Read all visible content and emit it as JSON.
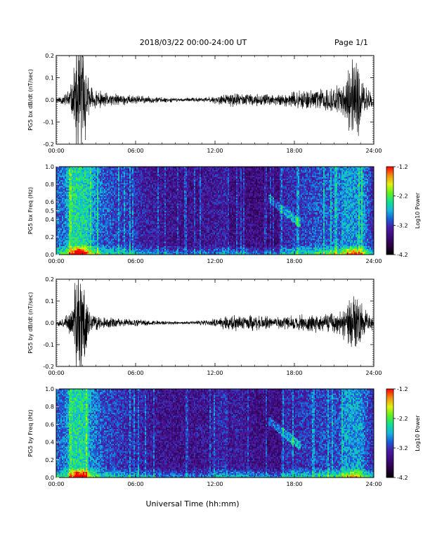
{
  "header": {
    "date_range": "2018/03/22  00:00-24:00 UT",
    "page": "Page 1/1"
  },
  "xlabel": "Universal Time (hh:mm)",
  "colors": {
    "trace": "#000000",
    "colormap": [
      "#000000",
      "#2a0040",
      "#3c0a78",
      "#4a1aa0",
      "#1a5ad8",
      "#18b4e0",
      "#10e090",
      "#60f020",
      "#e0f010",
      "#f09010",
      "#ff0000"
    ]
  },
  "chart_data": [
    {
      "type": "line",
      "ylabel": "PG5 bx dB/dt (nT/sec)",
      "xlim": [
        0,
        24
      ],
      "ylim": [
        -0.2,
        0.2
      ],
      "x_ticks": [
        "00:00",
        "06:00",
        "12:00",
        "18:00",
        "24:00"
      ],
      "y_ticks": [
        "0.2",
        "0.1",
        "0.0",
        "-0.1",
        "-0.2"
      ],
      "activity": [
        {
          "t": 0.0,
          "amp": 0.012
        },
        {
          "t": 0.6,
          "amp": 0.02
        },
        {
          "t": 1.2,
          "amp": 0.06
        },
        {
          "t": 1.6,
          "amp": 0.25
        },
        {
          "t": 2.0,
          "amp": 0.22
        },
        {
          "t": 2.5,
          "amp": 0.05
        },
        {
          "t": 3.5,
          "amp": 0.025
        },
        {
          "t": 5.0,
          "amp": 0.02
        },
        {
          "t": 7.0,
          "amp": 0.012
        },
        {
          "t": 9.5,
          "amp": 0.006
        },
        {
          "t": 11.5,
          "amp": 0.01
        },
        {
          "t": 13.5,
          "amp": 0.025
        },
        {
          "t": 14.8,
          "amp": 0.02
        },
        {
          "t": 16.5,
          "amp": 0.018
        },
        {
          "t": 19.0,
          "amp": 0.035
        },
        {
          "t": 21.5,
          "amp": 0.05
        },
        {
          "t": 22.6,
          "amp": 0.16
        },
        {
          "t": 23.2,
          "amp": 0.06
        },
        {
          "t": 24.0,
          "amp": 0.02
        }
      ]
    },
    {
      "type": "heatmap",
      "ylabel": "PG5 bx Freq (Hz)",
      "xlim": [
        0,
        24
      ],
      "ylim": [
        0.0,
        1.0
      ],
      "x_ticks": [
        "00:00",
        "06:00",
        "12:00",
        "18:00",
        "24:00"
      ],
      "y_ticks": [
        "1.0",
        "0.8",
        "0.6",
        "0.5",
        "0.4",
        "0.2",
        "0.0"
      ],
      "colorbar": {
        "label": "Log10 Power",
        "range": [
          -4.2,
          -1.2
        ],
        "ticks": [
          "-1.2",
          "-2.2",
          "-3.2",
          "-4.2"
        ]
      }
    },
    {
      "type": "line",
      "ylabel": "PG5 by dB/dt (nT/sec)",
      "xlim": [
        0,
        24
      ],
      "ylim": [
        -0.2,
        0.2
      ],
      "x_ticks": [
        "00:00",
        "06:00",
        "12:00",
        "18:00",
        "24:00"
      ],
      "y_ticks": [
        "0.2",
        "0.1",
        "0.0",
        "-0.1",
        "-0.2"
      ],
      "activity": [
        {
          "t": 0.0,
          "amp": 0.01
        },
        {
          "t": 0.6,
          "amp": 0.018
        },
        {
          "t": 1.2,
          "amp": 0.05
        },
        {
          "t": 1.6,
          "amp": 0.22
        },
        {
          "t": 2.0,
          "amp": 0.2
        },
        {
          "t": 2.5,
          "amp": 0.04
        },
        {
          "t": 3.5,
          "amp": 0.02
        },
        {
          "t": 5.0,
          "amp": 0.015
        },
        {
          "t": 7.0,
          "amp": 0.01
        },
        {
          "t": 9.5,
          "amp": 0.005
        },
        {
          "t": 11.5,
          "amp": 0.01
        },
        {
          "t": 13.5,
          "amp": 0.035
        },
        {
          "t": 14.8,
          "amp": 0.028
        },
        {
          "t": 16.5,
          "amp": 0.02
        },
        {
          "t": 19.0,
          "amp": 0.03
        },
        {
          "t": 21.5,
          "amp": 0.04
        },
        {
          "t": 22.6,
          "amp": 0.12
        },
        {
          "t": 23.2,
          "amp": 0.05
        },
        {
          "t": 24.0,
          "amp": 0.02
        }
      ]
    },
    {
      "type": "heatmap",
      "ylabel": "PG5 by Freq (Hz)",
      "xlim": [
        0,
        24
      ],
      "ylim": [
        0.0,
        1.0
      ],
      "x_ticks": [
        "00:00",
        "06:00",
        "12:00",
        "18:00",
        "24:00"
      ],
      "y_ticks": [
        "1.0",
        "0.8",
        "0.6",
        "0.4",
        "0.2",
        "0.0"
      ],
      "colorbar": {
        "label": "Log10 Power",
        "range": [
          -4.2,
          -1.2
        ],
        "ticks": [
          "-1.2",
          "-2.2",
          "-3.2",
          "-4.2"
        ]
      }
    }
  ]
}
